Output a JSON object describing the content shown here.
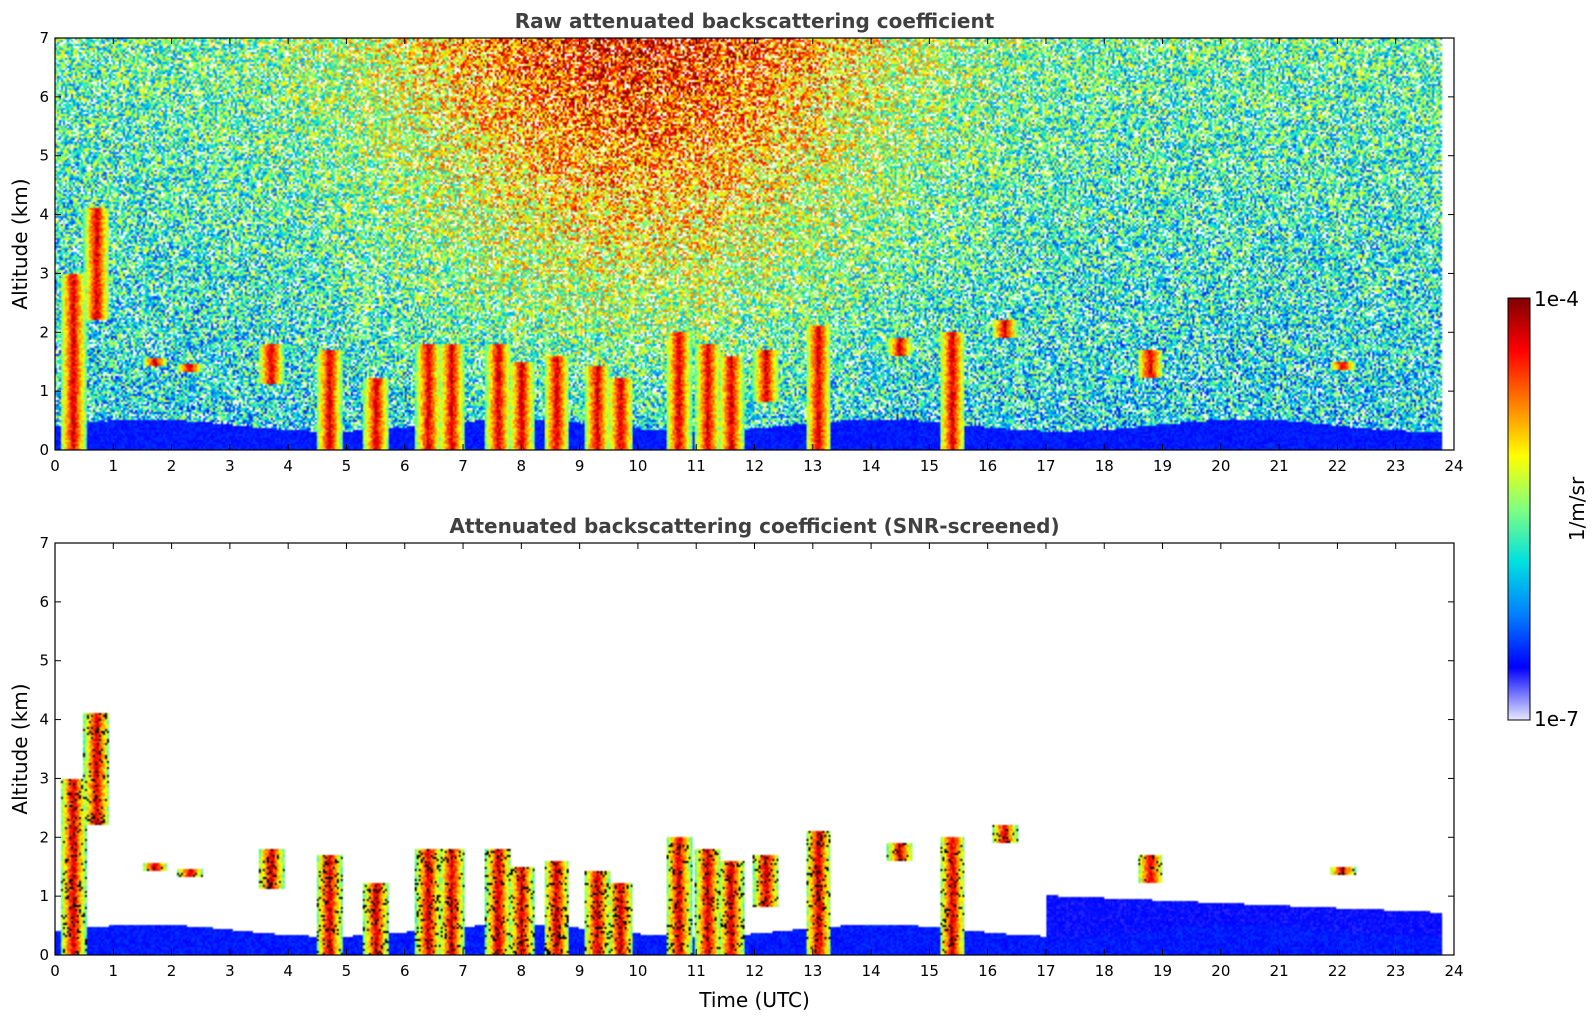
{
  "chart_data": [
    {
      "type": "heatmap",
      "title": "Raw attenuated backscattering coefficient",
      "xlabel": "",
      "ylabel": "Altitude (km)",
      "xlim": [
        0,
        24
      ],
      "ylim": [
        0,
        7
      ],
      "x_ticks": [
        "0",
        "1",
        "2",
        "3",
        "4",
        "5",
        "6",
        "7",
        "8",
        "9",
        "10",
        "11",
        "12",
        "13",
        "14",
        "15",
        "16",
        "17",
        "18",
        "19",
        "20",
        "21",
        "22",
        "23",
        "24"
      ],
      "y_ticks": [
        "0",
        "1",
        "2",
        "3",
        "4",
        "5",
        "6",
        "7"
      ],
      "data_end_hour": 23.8,
      "description_values": {
        "boundary_layer_top_km": 0.4,
        "noise_high_hours": [
          3,
          16
        ]
      },
      "features": [
        {
          "t": 0.3,
          "bottom": 0.0,
          "top": 3.0
        },
        {
          "t": 0.7,
          "bottom": 2.2,
          "top": 4.1
        },
        {
          "t": 1.7,
          "bottom": 1.4,
          "top": 1.55
        },
        {
          "t": 2.3,
          "bottom": 1.3,
          "top": 1.45
        },
        {
          "t": 3.7,
          "bottom": 1.1,
          "top": 1.8
        },
        {
          "t": 4.7,
          "bottom": 0.0,
          "top": 1.7
        },
        {
          "t": 5.5,
          "bottom": 0.0,
          "top": 1.2
        },
        {
          "t": 6.4,
          "bottom": 0.0,
          "top": 1.8
        },
        {
          "t": 6.8,
          "bottom": 0.0,
          "top": 1.8
        },
        {
          "t": 7.6,
          "bottom": 0.0,
          "top": 1.8
        },
        {
          "t": 8.0,
          "bottom": 0.0,
          "top": 1.5
        },
        {
          "t": 8.6,
          "bottom": 0.0,
          "top": 1.6
        },
        {
          "t": 9.3,
          "bottom": 0.0,
          "top": 1.4
        },
        {
          "t": 9.7,
          "bottom": 0.0,
          "top": 1.2
        },
        {
          "t": 10.7,
          "bottom": 0.0,
          "top": 2.0
        },
        {
          "t": 11.2,
          "bottom": 0.0,
          "top": 1.8
        },
        {
          "t": 11.6,
          "bottom": 0.0,
          "top": 1.6
        },
        {
          "t": 12.2,
          "bottom": 0.8,
          "top": 1.7
        },
        {
          "t": 13.1,
          "bottom": 0.0,
          "top": 2.1
        },
        {
          "t": 14.5,
          "bottom": 1.6,
          "top": 1.9
        },
        {
          "t": 15.4,
          "bottom": 0.0,
          "top": 2.0
        },
        {
          "t": 16.3,
          "bottom": 1.9,
          "top": 2.2
        },
        {
          "t": 18.8,
          "bottom": 1.2,
          "top": 1.7
        },
        {
          "t": 22.1,
          "bottom": 1.35,
          "top": 1.5
        }
      ]
    },
    {
      "type": "heatmap",
      "title": "Attenuated backscattering coefficient (SNR-screened)",
      "xlabel": "Time (UTC)",
      "ylabel": "Altitude (km)",
      "xlim": [
        0,
        24
      ],
      "ylim": [
        0,
        7
      ],
      "x_ticks": [
        "0",
        "1",
        "2",
        "3",
        "4",
        "5",
        "6",
        "7",
        "8",
        "9",
        "10",
        "11",
        "12",
        "13",
        "14",
        "15",
        "16",
        "17",
        "18",
        "19",
        "20",
        "21",
        "22",
        "23",
        "24"
      ],
      "y_ticks": [
        "0",
        "1",
        "2",
        "3",
        "4",
        "5",
        "6",
        "7"
      ],
      "data_end_hour": 23.8
    }
  ],
  "colorbar": {
    "label": "1/m/sr",
    "max_label": "1e-4",
    "min_label": "1e-7",
    "colormap": [
      "#e8e8ff",
      "#0000ff",
      "#0080ff",
      "#00e0e0",
      "#80ff80",
      "#ffff00",
      "#ff8000",
      "#ff0000",
      "#800000"
    ]
  }
}
